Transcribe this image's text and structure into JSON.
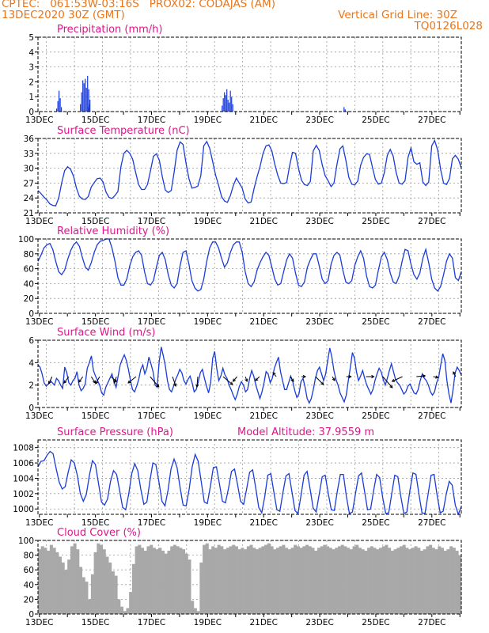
{
  "header": {
    "line1_left": "CPTEC:   061:53W-03:16S   PROX02: CODAJAS (AM)",
    "line2_left": "13DEC2020 30Z (GMT)",
    "line2_right": "Vertical Grid Line: 30Z",
    "line3_right": "TQ0126L028"
  },
  "colors": {
    "header": "#e8761c",
    "title": "#e0168c",
    "series": "#1a3cd8",
    "cloud": "#a8a8a8",
    "arrow": "#000000",
    "grid": "#9a9a9a"
  },
  "chart_data": [
    {
      "type": "bar",
      "title": "Precipitation (mm/h)",
      "ylim": [
        0,
        5
      ],
      "yticks": [
        "0",
        "1",
        "2",
        "3",
        "4",
        "5"
      ],
      "xticks": [
        "13DEC",
        "15DEC",
        "17DEC",
        "19DEC",
        "21DEC",
        "23DEC",
        "25DEC",
        "27DEC"
      ],
      "grid": true,
      "events": [
        {
          "day": 13.6,
          "values": [
            0.2,
            0.7,
            1.4,
            0.9,
            0.3
          ]
        },
        {
          "day": 14.45,
          "values": [
            0.5,
            1.3,
            2.1,
            1.9,
            2.2,
            1.6,
            2.4,
            1.5,
            0.8
          ]
        },
        {
          "day": 14.72,
          "values": [
            0.3,
            0.5
          ]
        },
        {
          "day": 19.5,
          "values": [
            0.4,
            0.9,
            1.3,
            1.1,
            1.5,
            0.8,
            0.6,
            1.4,
            1.0,
            0.5
          ]
        },
        {
          "day": 23.85,
          "values": [
            0.3,
            0.15
          ]
        }
      ]
    },
    {
      "type": "line",
      "title": "Surface Temperature (nC)",
      "ylim": [
        21,
        36
      ],
      "yticks": [
        "21",
        "24",
        "27",
        "30",
        "33",
        "36"
      ],
      "xticks": [
        "13DEC",
        "15DEC",
        "17DEC",
        "19DEC",
        "21DEC",
        "23DEC",
        "25DEC",
        "27DEC"
      ],
      "grid": true,
      "series": [
        {
          "values": [
            25.5,
            24.9,
            24.2,
            23.6,
            22.8,
            22.5,
            22.4,
            24.0,
            27.0,
            29.5,
            30.3,
            29.8,
            28.4,
            26.0,
            24.3,
            23.8,
            23.7,
            24.3,
            26.2,
            27.1,
            27.9,
            28.0,
            27.2,
            25.2,
            24.1,
            23.9,
            24.5,
            25.3,
            30.3,
            33.0,
            33.6,
            33.0,
            31.8,
            29.1,
            26.7,
            25.7,
            25.7,
            26.7,
            29.5,
            32.4,
            32.9,
            31.6,
            28.3,
            25.6,
            25.1,
            25.5,
            29.2,
            33.6,
            35.3,
            34.8,
            31.0,
            27.9,
            26.0,
            26.1,
            26.4,
            28.5,
            34.5,
            35.4,
            34.0,
            31.4,
            28.6,
            26.6,
            24.3,
            23.4,
            23.1,
            24.5,
            26.5,
            28.0,
            27.0,
            26.0,
            23.8,
            23.0,
            23.2,
            25.9,
            28.3,
            30.3,
            32.9,
            34.5,
            34.7,
            33.5,
            30.8,
            28.6,
            27.0,
            26.9,
            27.1,
            30.5,
            33.2,
            33.0,
            30.0,
            27.6,
            26.7,
            26.5,
            27.3,
            33.5,
            34.6,
            33.6,
            30.7,
            28.5,
            27.5,
            26.3,
            27.0,
            30.8,
            33.9,
            34.5,
            31.6,
            28.2,
            26.8,
            26.6,
            27.4,
            30.6,
            32.2,
            32.9,
            32.8,
            30.1,
            27.7,
            26.8,
            27.0,
            29.1,
            32.6,
            33.8,
            32.4,
            29.1,
            27.0,
            26.8,
            27.5,
            32.2,
            34.1,
            31.3,
            30.8,
            31.1,
            27.2,
            26.5,
            27.2,
            34.5,
            35.6,
            33.7,
            29.8,
            27.0,
            26.7,
            27.9,
            31.9,
            32.6,
            31.8,
            30.0
          ]
        }
      ]
    },
    {
      "type": "line",
      "title": "Relative Humidity (%)",
      "ylim": [
        0,
        100
      ],
      "yticks": [
        "0",
        "20",
        "40",
        "60",
        "80",
        "100"
      ],
      "xticks": [
        "13DEC",
        "15DEC",
        "17DEC",
        "19DEC",
        "21DEC",
        "23DEC",
        "25DEC",
        "27DEC"
      ],
      "grid": true,
      "series": [
        {
          "values": [
            70,
            78,
            88,
            92,
            94,
            86,
            70,
            56,
            52,
            58,
            72,
            84,
            92,
            96,
            90,
            75,
            62,
            58,
            68,
            82,
            92,
            97,
            98,
            100,
            100,
            88,
            70,
            48,
            38,
            38,
            46,
            64,
            76,
            82,
            84,
            78,
            56,
            40,
            38,
            44,
            62,
            78,
            82,
            72,
            52,
            38,
            34,
            40,
            64,
            82,
            84,
            66,
            44,
            34,
            30,
            32,
            46,
            70,
            88,
            96,
            96,
            88,
            74,
            62,
            68,
            82,
            92,
            96,
            96,
            82,
            56,
            40,
            36,
            42,
            58,
            68,
            76,
            82,
            78,
            62,
            46,
            38,
            40,
            56,
            72,
            80,
            74,
            54,
            38,
            36,
            42,
            62,
            72,
            80,
            80,
            64,
            46,
            40,
            44,
            66,
            78,
            82,
            78,
            58,
            42,
            40,
            44,
            64,
            76,
            84,
            74,
            50,
            36,
            34,
            38,
            58,
            76,
            82,
            72,
            54,
            42,
            40,
            50,
            70,
            86,
            84,
            66,
            52,
            46,
            54,
            74,
            86,
            68,
            46,
            34,
            30,
            36,
            52,
            70,
            80,
            74,
            48,
            44,
            56
          ]
        }
      ]
    },
    {
      "type": "line",
      "title": "Surface Wind (m/s)",
      "ylim": [
        0,
        6
      ],
      "yticks": [
        "0",
        "2",
        "4",
        "6"
      ],
      "xticks": [
        "13DEC",
        "15DEC",
        "17DEC",
        "19DEC",
        "21DEC",
        "23DEC",
        "25DEC",
        "27DEC"
      ],
      "grid": true,
      "series": [
        {
          "values": [
            3.8,
            3.6,
            3.0,
            2.2,
            1.9,
            2.1,
            2.4,
            2.2,
            2.0,
            2.6,
            2.4,
            2.0,
            1.7,
            3.6,
            3.1,
            2.2,
            2.0,
            2.4,
            2.6,
            3.2,
            2.0,
            1.5,
            1.7,
            2.1,
            3.5,
            4.0,
            4.6,
            3.3,
            2.8,
            2.4,
            2.0,
            1.3,
            1.1,
            1.8,
            2.2,
            2.6,
            3.0,
            2.3,
            1.8,
            2.8,
            3.8,
            4.3,
            4.7,
            4.2,
            3.4,
            2.4,
            1.6,
            1.4,
            1.9,
            2.5,
            3.4,
            3.8,
            3.0,
            3.5,
            4.5,
            3.9,
            3.2,
            2.0,
            1.8,
            4.1,
            5.4,
            4.6,
            3.7,
            2.4,
            1.6,
            1.4,
            1.9,
            2.5,
            2.9,
            3.4,
            3.1,
            2.4,
            2.1,
            2.5,
            2.8,
            2.2,
            1.4,
            1.6,
            2.3,
            3.1,
            3.4,
            2.6,
            1.9,
            1.3,
            2.2,
            4.4,
            5.0,
            3.5,
            2.4,
            2.8,
            3.5,
            2.9,
            2.6,
            2.0,
            1.6,
            1.1,
            0.7,
            1.2,
            1.9,
            2.3,
            2.0,
            1.4,
            1.6,
            2.6,
            3.3,
            2.8,
            2.0,
            1.4,
            0.8,
            1.4,
            2.2,
            3.2,
            3.0,
            2.2,
            2.6,
            3.5,
            4.0,
            4.5,
            3.2,
            2.4,
            1.6,
            1.6,
            2.2,
            2.8,
            2.3,
            1.5,
            0.9,
            1.2,
            2.3,
            2.6,
            1.8,
            0.8,
            0.4,
            0.8,
            1.6,
            2.6,
            3.3,
            3.6,
            3.0,
            2.4,
            3.0,
            4.2,
            5.3,
            4.5,
            3.3,
            2.5,
            2.0,
            1.3,
            0.9,
            0.5,
            1.1,
            2.4,
            3.6,
            4.9,
            4.4,
            3.2,
            2.4,
            2.8,
            3.3,
            2.6,
            2.0,
            1.6,
            1.2,
            1.6,
            2.4,
            3.0,
            3.5,
            3.2,
            2.5,
            2.0,
            2.6,
            3.3,
            3.9,
            3.2,
            2.5,
            2.2,
            2.0,
            1.6,
            1.2,
            1.4,
            1.9,
            2.1,
            1.7,
            1.3,
            1.2,
            1.6,
            2.4,
            3.0,
            2.6,
            2.4,
            2.0,
            1.4,
            1.1,
            1.4,
            2.2,
            2.7,
            3.8,
            4.8,
            4.2,
            2.4,
            1.2,
            0.4,
            1.6,
            3.1,
            3.6,
            3.3,
            2.9
          ]
        }
      ],
      "arrows": [
        {
          "day": 13.45,
          "dx": -4,
          "dy": 9
        },
        {
          "day": 14.05,
          "dx": -6,
          "dy": 8
        },
        {
          "day": 14.55,
          "dx": -5,
          "dy": 7
        },
        {
          "day": 14.85,
          "dx": 5,
          "dy": 8
        },
        {
          "day": 15.15,
          "dx": -5,
          "dy": 9
        },
        {
          "day": 15.55,
          "dx": 7,
          "dy": 6
        },
        {
          "day": 15.75,
          "dx": -3,
          "dy": 8
        },
        {
          "day": 16.45,
          "dx": -10,
          "dy": 8
        },
        {
          "day": 16.95,
          "dx": 11,
          "dy": 13
        },
        {
          "day": 17.75,
          "dx": 4,
          "dy": 12
        },
        {
          "day": 18.65,
          "dx": -1,
          "dy": 13
        },
        {
          "day": 19.55,
          "dx": 12,
          "dy": 10
        },
        {
          "day": 20.05,
          "dx": -5,
          "dy": 6
        },
        {
          "day": 20.35,
          "dx": 2,
          "dy": 6
        },
        {
          "day": 20.85,
          "dx": -5,
          "dy": 5
        },
        {
          "day": 21.45,
          "dx": -4,
          "dy": -5
        },
        {
          "day": 21.95,
          "dx": 4,
          "dy": 6
        },
        {
          "day": 22.35,
          "dx": 5,
          "dy": 0
        },
        {
          "day": 22.85,
          "dx": 10,
          "dy": 10
        },
        {
          "day": 23.45,
          "dx": 3,
          "dy": 5
        },
        {
          "day": 23.95,
          "dx": 6,
          "dy": 0
        },
        {
          "day": 24.65,
          "dx": 10,
          "dy": 0
        },
        {
          "day": 25.25,
          "dx": 12,
          "dy": 14
        },
        {
          "day": 25.95,
          "dx": -13,
          "dy": 6
        },
        {
          "day": 26.45,
          "dx": 11,
          "dy": -1
        },
        {
          "day": 27.05,
          "dx": 6,
          "dy": 1
        },
        {
          "day": 27.85,
          "dx": -3,
          "dy": -6
        }
      ]
    },
    {
      "type": "line",
      "title": "Surface Pressure (hPa)",
      "subtitle": "Model Altitude: 37.9559  m",
      "ylim": [
        999.3,
        1009
      ],
      "yticks": [
        "1000",
        "1002",
        "1004",
        "1006",
        "1008"
      ],
      "xticks": [
        "13DEC",
        "15DEC",
        "17DEC",
        "19DEC",
        "21DEC",
        "23DEC",
        "25DEC",
        "27DEC"
      ],
      "grid": true,
      "series": [
        {
          "values": [
            1005.5,
            1006.2,
            1006.3,
            1007.0,
            1007.5,
            1007.2,
            1005.3,
            1003.5,
            1002.6,
            1002.9,
            1004.8,
            1006.4,
            1006.0,
            1004.4,
            1002.0,
            1001.0,
            1001.9,
            1004.4,
            1006.3,
            1005.8,
            1003.4,
            1000.9,
            1000.5,
            1001.3,
            1003.6,
            1005.0,
            1004.5,
            1002.4,
            1000.2,
            999.9,
            1001.9,
            1004.6,
            1005.9,
            1005.0,
            1002.6,
            1000.6,
            1000.9,
            1003.6,
            1006.0,
            1005.8,
            1003.5,
            1001.0,
            1000.4,
            1002.4,
            1005.2,
            1006.5,
            1005.4,
            1002.8,
            1000.5,
            1000.4,
            1002.6,
            1005.5,
            1007.1,
            1006.2,
            1003.5,
            1000.9,
            1000.7,
            1002.9,
            1005.4,
            1005.5,
            1003.3,
            1001.0,
            1000.8,
            1002.7,
            1004.9,
            1005.2,
            1003.2,
            1001.0,
            1000.6,
            1002.6,
            1004.8,
            1005.1,
            1002.8,
            1000.2,
            999.5,
            1001.6,
            1004.4,
            1004.6,
            1002.2,
            999.9,
            999.7,
            1002.1,
            1004.3,
            1004.6,
            1002.2,
            999.8,
            999.4,
            1001.8,
            1004.4,
            1004.9,
            1002.6,
            1000.1,
            999.6,
            1001.9,
            1004.2,
            1004.4,
            1002.0,
            999.9,
            999.8,
            1002.3,
            1004.5,
            1004.5,
            1001.6,
            999.4,
            999.6,
            1002.0,
            1004.3,
            1004.7,
            1002.3,
            999.9,
            1000.0,
            1002.4,
            1004.5,
            1004.1,
            1001.5,
            999.4,
            999.5,
            1002.0,
            1004.4,
            1004.2,
            1001.6,
            999.4,
            999.6,
            1002.4,
            1004.7,
            1004.5,
            1001.9,
            999.5,
            999.4,
            1001.9,
            1004.4,
            1004.5,
            1001.8,
            999.5,
            999.7,
            1001.9,
            1003.6,
            1003.1,
            1000.5,
            999.3,
            1000.3
          ]
        }
      ]
    },
    {
      "type": "bar",
      "title": "Cloud Cover (%)",
      "ylim": [
        0,
        100
      ],
      "yticks": [
        "0",
        "20",
        "40",
        "60",
        "80",
        "100"
      ],
      "xticks": [
        "13DEC",
        "15DEC",
        "17DEC",
        "19DEC",
        "21DEC",
        "23DEC",
        "25DEC",
        "27DEC"
      ],
      "grid": true,
      "series": [
        {
          "values": [
            88,
            92,
            90,
            86,
            94,
            90,
            84,
            78,
            70,
            60,
            74,
            92,
            96,
            88,
            64,
            50,
            44,
            20,
            54,
            84,
            96,
            94,
            88,
            78,
            70,
            58,
            52,
            20,
            10,
            4,
            8,
            30,
            68,
            92,
            94,
            90,
            86,
            92,
            94,
            90,
            88,
            90,
            86,
            82,
            86,
            92,
            94,
            92,
            90,
            88,
            82,
            74,
            18,
            8,
            4,
            70,
            94,
            96,
            88,
            92,
            90,
            94,
            92,
            88,
            90,
            92,
            94,
            92,
            88,
            90,
            88,
            92,
            94,
            90,
            88,
            90,
            92,
            94,
            96,
            92,
            88,
            90,
            92,
            94,
            90,
            88,
            90,
            94,
            92,
            90,
            92,
            94,
            92,
            90,
            86,
            90,
            92,
            94,
            92,
            90,
            88,
            90,
            92,
            94,
            92,
            90,
            88,
            92,
            94,
            90,
            88,
            86,
            90,
            92,
            90,
            88,
            90,
            92,
            94,
            90,
            86,
            88,
            90,
            92,
            94,
            90,
            88,
            90,
            92,
            90,
            86,
            88,
            92,
            94,
            90,
            88,
            92,
            90,
            86,
            88,
            92,
            90,
            86,
            80
          ]
        }
      ]
    }
  ]
}
